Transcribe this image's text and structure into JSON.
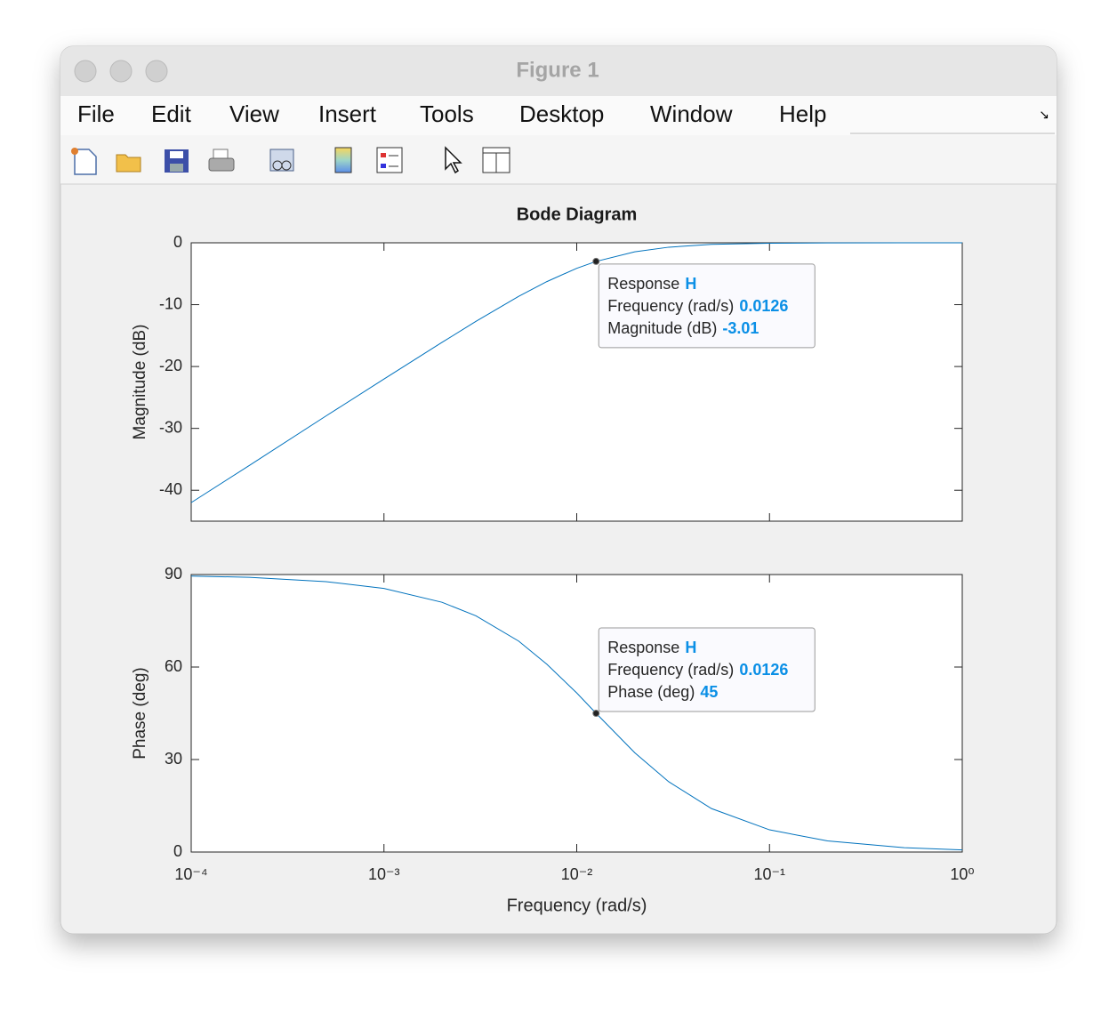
{
  "window": {
    "title": "Figure 1",
    "menu": [
      "File",
      "Edit",
      "View",
      "Insert",
      "Tools",
      "Desktop",
      "Window",
      "Help"
    ]
  },
  "chart_data": [
    {
      "type": "line",
      "title": "Bode Diagram",
      "ylabel": "Magnitude (dB)",
      "log_x": true,
      "color": "#0072bd",
      "x": [
        0.0001,
        0.0002,
        0.0005,
        0.001,
        0.002,
        0.003,
        0.005,
        0.007,
        0.01,
        0.0126,
        0.02,
        0.03,
        0.05,
        0.1,
        0.2,
        0.5,
        1
      ],
      "values": [
        -42.0,
        -36.0,
        -28.0,
        -22.03,
        -16.1,
        -12.7,
        -8.66,
        -6.27,
        -4.12,
        -3.01,
        -1.45,
        -0.71,
        -0.26,
        -0.07,
        -0.02,
        0,
        0
      ],
      "xlim": [
        0.0001,
        1
      ],
      "ylim": [
        -45,
        0
      ],
      "yticks": [
        0,
        -10,
        -20,
        -30,
        -40
      ],
      "datatip": {
        "response_label": "Response",
        "response": "H",
        "x_label": "Frequency (rad/s)",
        "x": 0.0126,
        "y_label": "Magnitude (dB)",
        "y": -3.01
      }
    },
    {
      "type": "line",
      "xlabel": "Frequency (rad/s)",
      "ylabel": "Phase (deg)",
      "log_x": true,
      "color": "#0072bd",
      "x": [
        0.0001,
        0.0002,
        0.0005,
        0.001,
        0.002,
        0.003,
        0.005,
        0.007,
        0.01,
        0.0126,
        0.02,
        0.03,
        0.05,
        0.1,
        0.2,
        0.5,
        1
      ],
      "values": [
        89.5,
        89.1,
        87.7,
        85.5,
        81.0,
        76.6,
        68.4,
        60.9,
        51.6,
        45,
        32.2,
        22.8,
        14.1,
        7.2,
        3.6,
        1.4,
        0.7
      ],
      "xlim": [
        0.0001,
        1
      ],
      "ylim": [
        0,
        90
      ],
      "yticks": [
        0,
        30,
        60,
        90
      ],
      "xticks": [
        {
          "value": 0.0001,
          "label": "10⁻⁴"
        },
        {
          "value": 0.001,
          "label": "10⁻³"
        },
        {
          "value": 0.01,
          "label": "10⁻²"
        },
        {
          "value": 0.1,
          "label": "10⁻¹"
        },
        {
          "value": 1,
          "label": "10⁰"
        }
      ],
      "datatip": {
        "response_label": "Response",
        "response": "H",
        "x_label": "Frequency (rad/s)",
        "x": 0.0126,
        "y_label": "Phase (deg)",
        "y": 45
      }
    }
  ]
}
